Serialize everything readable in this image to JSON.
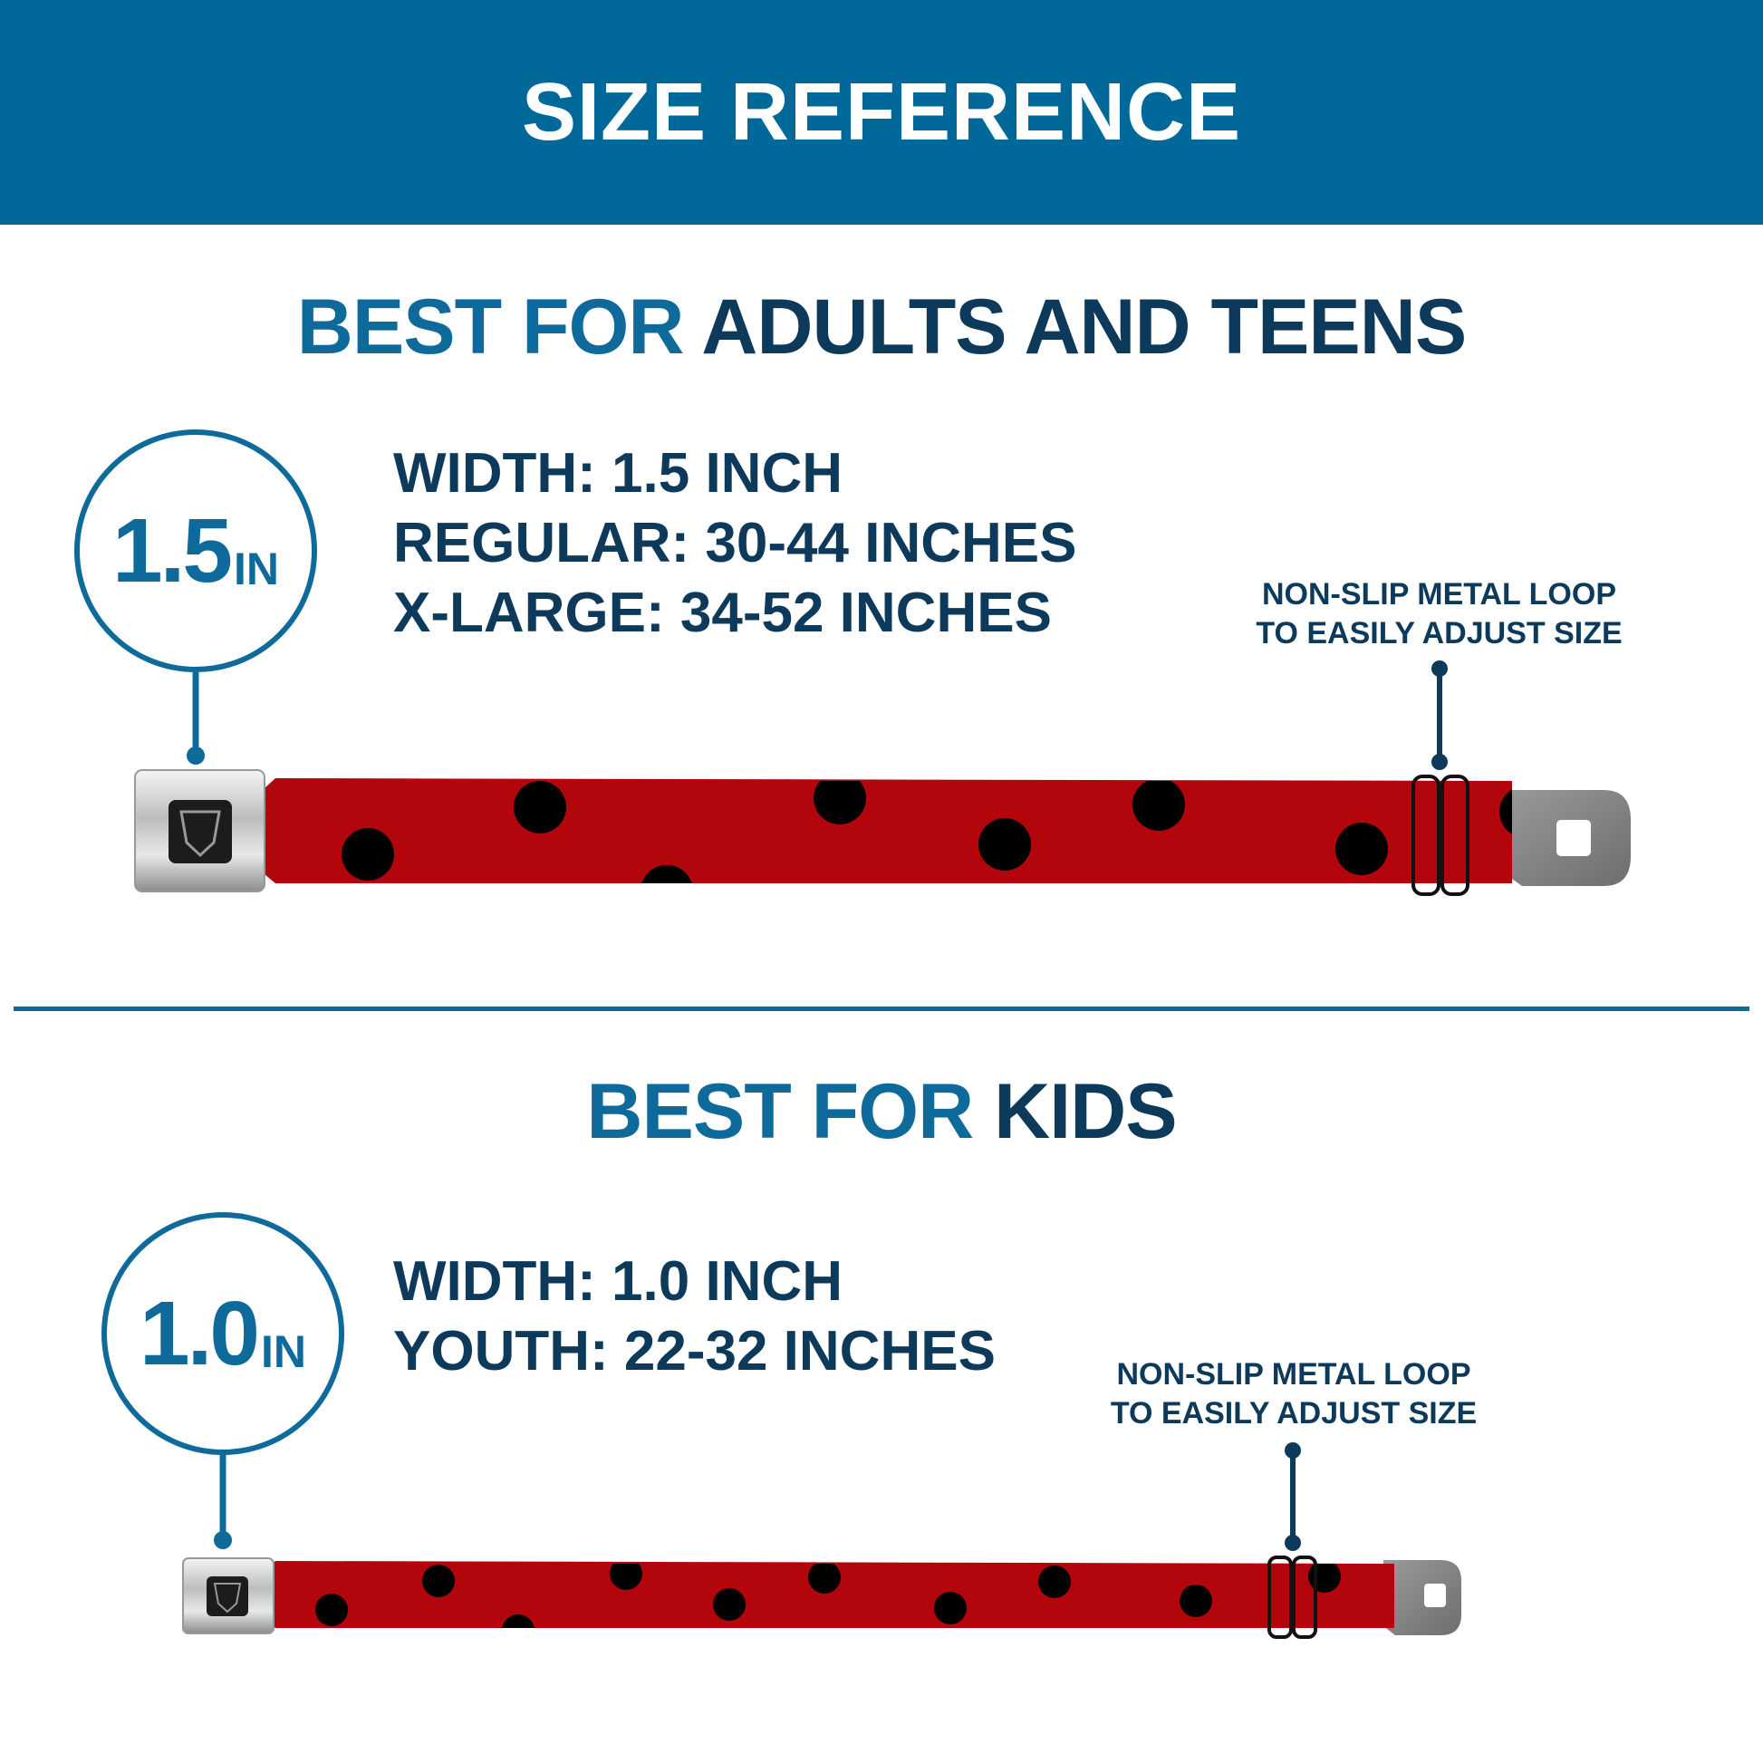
{
  "header": {
    "title": "SIZE REFERENCE",
    "background": "#00699a"
  },
  "adults": {
    "title_prefix": "BEST FOR",
    "title_main": "ADULTS AND TEENS",
    "badge": {
      "value": "1.5",
      "unit": "IN"
    },
    "specs": [
      "WIDTH: 1.5 INCH",
      "REGULAR: 30-44 INCHES",
      "X-LARGE: 34-52 INCHES"
    ],
    "loop_note": [
      "NON-SLIP METAL LOOP",
      "TO EASILY ADJUST SIZE"
    ]
  },
  "kids": {
    "title_prefix": "BEST FOR",
    "title_main": "KIDS",
    "badge": {
      "value": "1.0",
      "unit": "IN"
    },
    "specs": [
      "WIDTH: 1.0 INCH",
      "YOUTH: 22-32 INCHES"
    ],
    "loop_note": [
      "NON-SLIP METAL LOOP",
      "TO EASILY ADJUST SIZE"
    ]
  },
  "colors": {
    "accent_blue": "#0f6a9c",
    "navy": "#0d3a5a",
    "strap_red": "#b3050c",
    "dots": "#000000"
  }
}
